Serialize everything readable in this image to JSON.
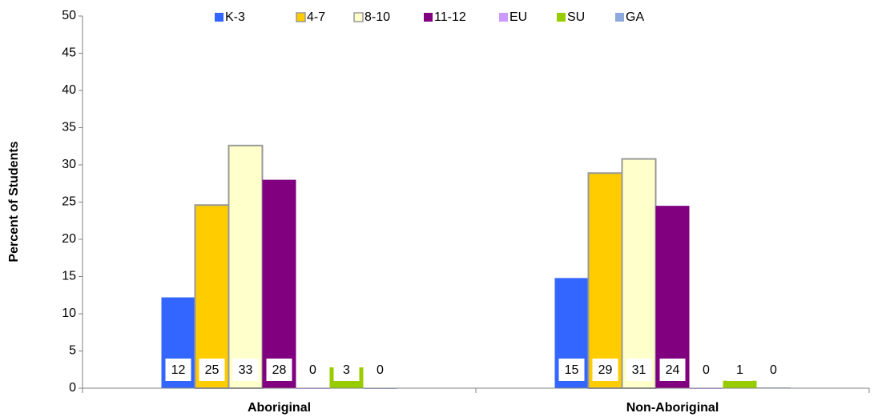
{
  "chart_data": {
    "type": "bar",
    "y_label": "Percent of Students",
    "categories": [
      "Aboriginal",
      "Non-Aboriginal"
    ],
    "series": [
      {
        "name": "K-3",
        "color": "#3366ff",
        "values": [
          12.2,
          14.8
        ],
        "value_labels": [
          "12",
          "15"
        ]
      },
      {
        "name": "4-7",
        "color": "#ffcc00",
        "values": [
          24.6,
          28.9
        ],
        "value_labels": [
          "25",
          "29"
        ]
      },
      {
        "name": "8-10",
        "color": "#ffffcc",
        "values": [
          32.6,
          30.8
        ],
        "value_labels": [
          "33",
          "31"
        ]
      },
      {
        "name": "11-12",
        "color": "#800080",
        "values": [
          28.0,
          24.5
        ],
        "value_labels": [
          "28",
          "24"
        ]
      },
      {
        "name": "EU",
        "color": "#cc99ff",
        "values": [
          0,
          0
        ],
        "value_labels": [
          "0",
          "0"
        ]
      },
      {
        "name": "SU",
        "color": "#99cc00",
        "values": [
          2.8,
          1.0
        ],
        "value_labels": [
          "3",
          "1"
        ]
      },
      {
        "name": "GA",
        "color": "#8ea9db",
        "values": [
          0,
          0.1
        ],
        "value_labels": [
          "0",
          "0"
        ]
      }
    ],
    "ylim": [
      0,
      50
    ],
    "yticks": [
      0,
      5,
      10,
      15,
      20,
      25,
      30,
      35,
      40,
      45,
      50
    ],
    "legend": "top"
  }
}
